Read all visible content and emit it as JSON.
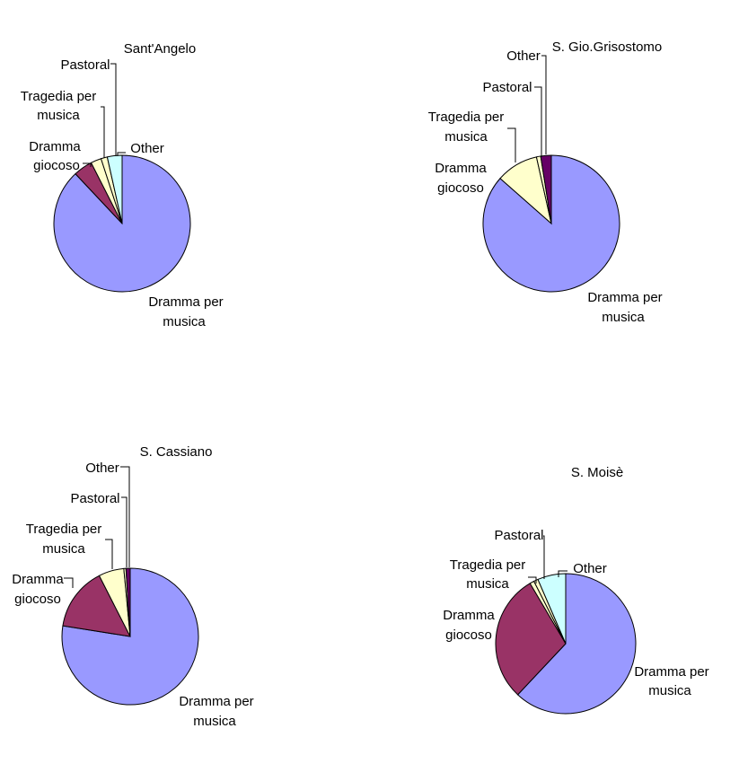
{
  "colors": {
    "Dramma per musica": "#9999FF",
    "Dramma giocoso": "#993366",
    "Tragedia per musica": "#FFFFCC",
    "Pastoral": "#FFFFCC",
    "Other": "#CCFFFF",
    "Other (purple)": "#660066"
  },
  "chart_data": [
    {
      "type": "pie",
      "title": "Sant'Angelo",
      "slices": [
        {
          "label": "Dramma per musica",
          "value": 88.0,
          "color": "#9999FF"
        },
        {
          "label": "Dramma giocoso",
          "value": 4.5,
          "color": "#993366"
        },
        {
          "label": "Tragedia per musica",
          "value": 2.5,
          "color": "#FFFFCC"
        },
        {
          "label": "Pastoral",
          "value": 1.5,
          "color": "#FFFFCC"
        },
        {
          "label": "Other",
          "value": 3.5,
          "color": "#CCFFFF"
        }
      ]
    },
    {
      "type": "pie",
      "title": "S. Gio.Grisostomo",
      "slices": [
        {
          "label": "Dramma per musica",
          "value": 86.5,
          "color": "#9999FF"
        },
        {
          "label": "Dramma giocoso",
          "value": 0.0,
          "color": "#993366"
        },
        {
          "label": "Tragedia per musica",
          "value": 10.0,
          "color": "#FFFFCC"
        },
        {
          "label": "Pastoral",
          "value": 1.0,
          "color": "#FFFFCC"
        },
        {
          "label": "Other",
          "value": 2.5,
          "color": "#660066"
        }
      ]
    },
    {
      "type": "pie",
      "title": "S. Cassiano",
      "slices": [
        {
          "label": "Dramma per musica",
          "value": 77.5,
          "color": "#9999FF"
        },
        {
          "label": "Dramma giocoso",
          "value": 15.0,
          "color": "#993366"
        },
        {
          "label": "Tragedia per musica",
          "value": 6.0,
          "color": "#FFFFCC"
        },
        {
          "label": "Pastoral",
          "value": 0.5,
          "color": "#FFFFCC"
        },
        {
          "label": "Other",
          "value": 1.0,
          "color": "#660066"
        }
      ]
    },
    {
      "type": "pie",
      "title": "S. Moisè",
      "slices": [
        {
          "label": "Dramma per musica",
          "value": 62.0,
          "color": "#9999FF"
        },
        {
          "label": "Dramma giocoso",
          "value": 29.5,
          "color": "#993366"
        },
        {
          "label": "Tragedia per musica",
          "value": 1.0,
          "color": "#FFFFCC"
        },
        {
          "label": "Pastoral",
          "value": 1.0,
          "color": "#FFFFCC"
        },
        {
          "label": "Other",
          "value": 6.5,
          "color": "#CCFFFF"
        }
      ]
    }
  ]
}
